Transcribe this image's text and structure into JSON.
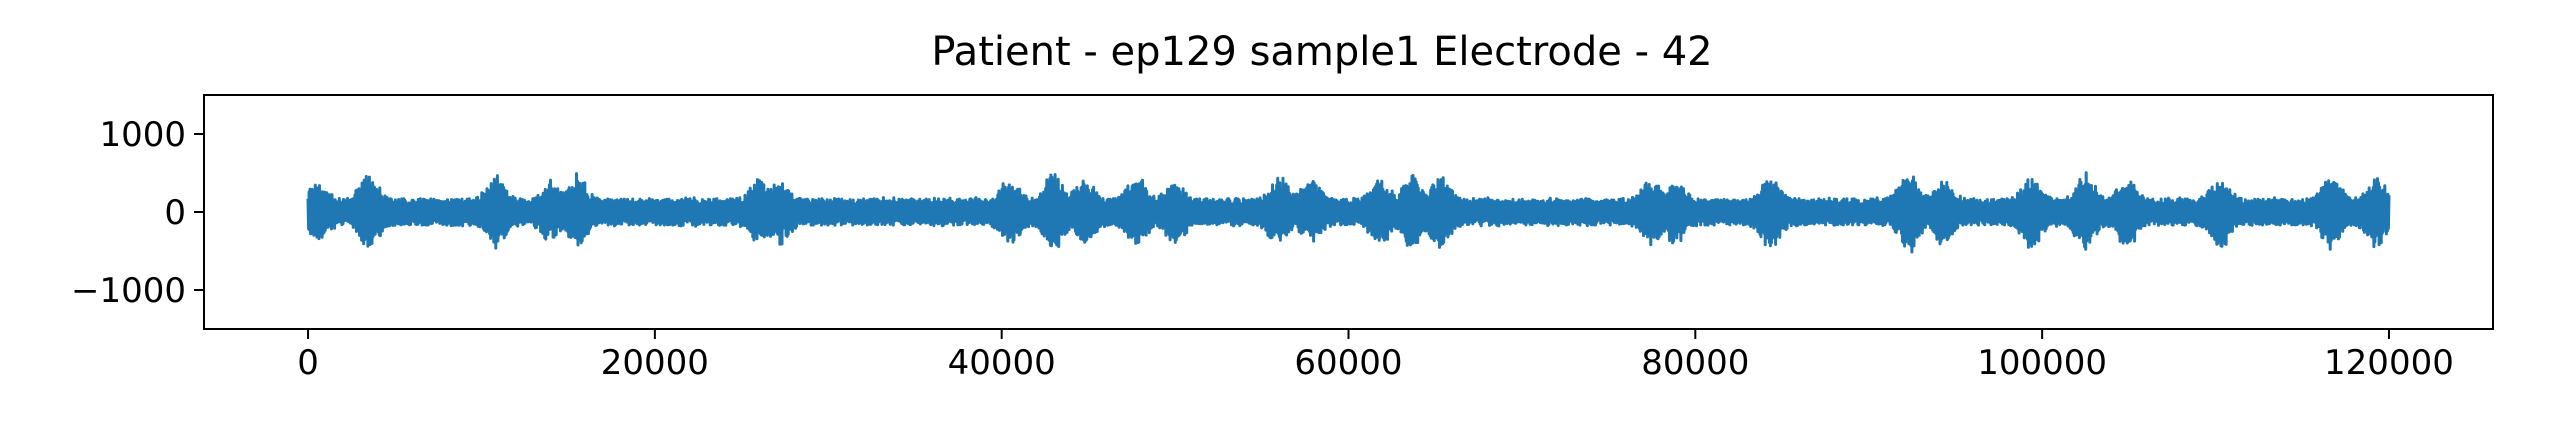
{
  "chart_data": {
    "type": "line",
    "title": "Patient - ep129 sample1 Electrode - 42",
    "xlabel": "",
    "ylabel": "",
    "xlim": [
      -6000,
      126000
    ],
    "ylim": [
      -1500,
      1500
    ],
    "xticks": [
      0,
      20000,
      40000,
      60000,
      80000,
      100000,
      120000
    ],
    "xtick_labels": [
      "0",
      "20000",
      "40000",
      "60000",
      "80000",
      "100000",
      "120000"
    ],
    "yticks": [
      1000,
      0,
      -1000
    ],
    "ytick_labels": [
      "1000",
      "0",
      "−1000"
    ],
    "grid": false,
    "legend": false,
    "series": [
      {
        "color": "#1f77b4",
        "x_start": 0,
        "x_end": 120000,
        "baseline_envelope": 170,
        "bursts": [
          {
            "x": 600,
            "amplitude": 430
          },
          {
            "x": 3500,
            "amplitude": 520
          },
          {
            "x": 10800,
            "amplitude": 520
          },
          {
            "x": 14000,
            "amplitude": 420
          },
          {
            "x": 15500,
            "amplitude": 530
          },
          {
            "x": 26000,
            "amplitude": 480
          },
          {
            "x": 27200,
            "amplitude": 470
          },
          {
            "x": 40500,
            "amplitude": 480
          },
          {
            "x": 43000,
            "amplitude": 550
          },
          {
            "x": 44800,
            "amplitude": 470
          },
          {
            "x": 47800,
            "amplitude": 500
          },
          {
            "x": 50000,
            "amplitude": 420
          },
          {
            "x": 56000,
            "amplitude": 510
          },
          {
            "x": 57800,
            "amplitude": 430
          },
          {
            "x": 61800,
            "amplitude": 480
          },
          {
            "x": 63700,
            "amplitude": 550
          },
          {
            "x": 65300,
            "amplitude": 510
          },
          {
            "x": 77500,
            "amplitude": 480
          },
          {
            "x": 78800,
            "amplitude": 440
          },
          {
            "x": 84300,
            "amplitude": 520
          },
          {
            "x": 92300,
            "amplitude": 560
          },
          {
            "x": 94300,
            "amplitude": 450
          },
          {
            "x": 99400,
            "amplitude": 510
          },
          {
            "x": 102500,
            "amplitude": 550
          },
          {
            "x": 104900,
            "amplitude": 480
          },
          {
            "x": 110300,
            "amplitude": 500
          },
          {
            "x": 116700,
            "amplitude": 520
          },
          {
            "x": 119300,
            "amplitude": 470
          }
        ]
      }
    ]
  }
}
